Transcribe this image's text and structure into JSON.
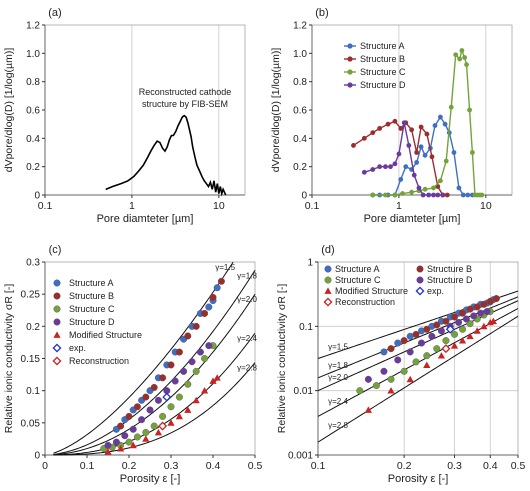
{
  "chart_data": [
    {
      "panel": "(a)",
      "type": "line",
      "xscale": "log",
      "xlim": [
        0.1,
        20
      ],
      "ylim": [
        0,
        1.2
      ],
      "xticks": [
        0.1,
        1,
        10
      ],
      "xtick_labels": [
        "0.1",
        "1",
        "10"
      ],
      "yticks": [
        0,
        0.2,
        0.4,
        0.6,
        0.8,
        1.0,
        1.2
      ],
      "ytick_labels": [
        "0",
        "0.2",
        "0.4",
        "0.6",
        "0.8",
        "1.0",
        "1.2"
      ],
      "xlabel": "Pore diamteter [µm]",
      "ylabel": "dVpore/dlog(D) [1/log(µm)]",
      "grid": "vertical",
      "annotation": [
        "Reconstructed cathode",
        "structure by FIB-SEM"
      ],
      "series": [
        {
          "color": "#000000",
          "markers": false,
          "x": [
            0.5,
            0.6,
            0.75,
            0.9,
            1.05,
            1.2,
            1.35,
            1.5,
            1.65,
            1.8,
            1.95,
            2.1,
            2.25,
            2.4,
            2.55,
            2.7,
            2.85,
            3.0,
            3.2,
            3.4,
            3.6,
            3.8,
            4.0,
            4.2,
            4.4,
            4.6,
            4.8,
            5.0,
            5.3,
            5.6,
            6.0,
            6.4,
            6.8,
            7.2,
            7.6,
            8.0,
            8.4,
            8.8,
            9.2,
            9.6,
            10.0,
            10.4,
            10.8,
            11.2,
            11.6,
            12.0
          ],
          "y": [
            0.04,
            0.06,
            0.08,
            0.1,
            0.13,
            0.17,
            0.21,
            0.26,
            0.31,
            0.35,
            0.38,
            0.37,
            0.33,
            0.31,
            0.34,
            0.39,
            0.42,
            0.42,
            0.45,
            0.49,
            0.52,
            0.55,
            0.56,
            0.55,
            0.51,
            0.46,
            0.41,
            0.34,
            0.27,
            0.21,
            0.17,
            0.13,
            0.1,
            0.08,
            0.06,
            0.09,
            0.04,
            0.1,
            0.02,
            0.08,
            0.01,
            0.06,
            0.01,
            0.04,
            0.02,
            0.0
          ]
        }
      ]
    },
    {
      "panel": "(b)",
      "type": "line",
      "xscale": "log",
      "xlim": [
        0.1,
        20
      ],
      "ylim": [
        0,
        1.2
      ],
      "xticks": [
        0.1,
        1,
        10
      ],
      "xtick_labels": [
        "0.1",
        "1",
        "10"
      ],
      "yticks": [
        0,
        0.2,
        0.4,
        0.6,
        0.8,
        1.0,
        1.2
      ],
      "ytick_labels": [
        "0",
        "0.2",
        "0.4",
        "0.6",
        "0.8",
        "1.0",
        "1.2"
      ],
      "xlabel": "Pore diamteter [µm]",
      "ylabel": "dVpore/dlog(D) [1/log(µm)]",
      "grid": "vertical",
      "legend": "top-left",
      "series": [
        {
          "name": "Structure A",
          "color": "#3f6fc3",
          "x": [
            0.5,
            0.6,
            0.75,
            0.9,
            1.05,
            1.2,
            1.4,
            1.6,
            1.8,
            2.0,
            2.3,
            2.6,
            3.0,
            3.4,
            3.8,
            4.3,
            4.9,
            5.5,
            6.2,
            7.0
          ],
          "y": [
            0.0,
            0.0,
            0.0,
            0.0,
            0.11,
            0.2,
            0.18,
            0.23,
            0.34,
            0.28,
            0.33,
            0.49,
            0.55,
            0.5,
            0.44,
            0.3,
            0.05,
            0.0,
            0.0,
            0.0
          ]
        },
        {
          "name": "Structure B",
          "color": "#9b2d2d",
          "x": [
            0.3,
            0.4,
            0.5,
            0.6,
            0.75,
            0.9,
            1.05,
            1.2,
            1.4,
            1.6,
            1.8,
            2.1,
            2.4,
            2.8,
            3.2,
            3.6
          ],
          "y": [
            0.35,
            0.4,
            0.44,
            0.47,
            0.5,
            0.52,
            0.47,
            0.51,
            0.46,
            0.3,
            0.48,
            0.43,
            0.27,
            0.06,
            0.0,
            0.0
          ]
        },
        {
          "name": "Structure C",
          "color": "#75a23a",
          "x": [
            0.5,
            0.7,
            0.9,
            1.1,
            1.4,
            1.7,
            2.0,
            2.5,
            3.0,
            3.5,
            4.0,
            4.5,
            5.0,
            5.3,
            5.7,
            6.0,
            6.5,
            7.0,
            7.5,
            8.0,
            8.5,
            9.0
          ],
          "y": [
            0.0,
            0.0,
            0.0,
            0.01,
            0.02,
            0.03,
            0.04,
            0.05,
            0.1,
            0.24,
            0.62,
            0.99,
            0.96,
            1.02,
            0.97,
            0.92,
            0.6,
            0.3,
            0.0,
            0.0,
            0.0,
            0.0
          ]
        },
        {
          "name": "Structure D",
          "color": "#6a3a9e",
          "x": [
            0.4,
            0.5,
            0.6,
            0.7,
            0.8,
            0.9,
            1.0,
            1.15,
            1.3,
            1.5,
            1.7,
            1.9,
            2.2,
            2.5,
            2.8,
            3.2
          ],
          "y": [
            0.16,
            0.18,
            0.2,
            0.2,
            0.2,
            0.22,
            0.29,
            0.51,
            0.35,
            0.14,
            0.05,
            0.0,
            0.0,
            0.0,
            0.0,
            0.0
          ]
        }
      ]
    },
    {
      "panel": "(c)",
      "type": "scatter",
      "xlim": [
        0,
        0.5
      ],
      "ylim": [
        0,
        0.3
      ],
      "xticks": [
        0,
        0.1,
        0.2,
        0.3,
        0.4,
        0.5
      ],
      "xtick_labels": [
        "0",
        "0.1",
        "0.2",
        "0.3",
        "0.4",
        "0.5"
      ],
      "yticks": [
        0,
        0.05,
        0.1,
        0.15,
        0.2,
        0.25,
        0.3
      ],
      "ytick_labels": [
        "0",
        "0.05",
        "0.1",
        "0.15",
        "0.2",
        "0.25",
        "0.3"
      ],
      "xlabel": "Porosity ε [-]",
      "ylabel": "Relative ionic conductivity σR [-]",
      "legend": "top-left",
      "curves": [
        {
          "label": "γ=1.5",
          "gamma": 1.5
        },
        {
          "label": "γ=1.8",
          "gamma": 1.8
        },
        {
          "label": "γ=2.0",
          "gamma": 2.0
        },
        {
          "label": "γ=2.4",
          "gamma": 2.4
        },
        {
          "label": "γ=2.8",
          "gamma": 2.8
        }
      ],
      "series": [
        {
          "name": "Structure A",
          "color": "#3f6fc3",
          "marker": "circle",
          "x": [
            0.17,
            0.19,
            0.21,
            0.23,
            0.25,
            0.27,
            0.29,
            0.31,
            0.33,
            0.35,
            0.37,
            0.39,
            0.4,
            0.41
          ],
          "y": [
            0.04,
            0.055,
            0.07,
            0.085,
            0.1,
            0.12,
            0.14,
            0.16,
            0.18,
            0.2,
            0.22,
            0.23,
            0.24,
            0.26
          ]
        },
        {
          "name": "Structure B",
          "color": "#9b2d2d",
          "marker": "circle",
          "x": [
            0.18,
            0.2,
            0.22,
            0.24,
            0.26,
            0.28,
            0.3,
            0.32,
            0.34,
            0.36,
            0.38,
            0.4,
            0.42
          ],
          "y": [
            0.045,
            0.06,
            0.075,
            0.09,
            0.105,
            0.12,
            0.14,
            0.16,
            0.185,
            0.2,
            0.22,
            0.245,
            0.27
          ]
        },
        {
          "name": "Structure C",
          "color": "#75a23a",
          "marker": "circle",
          "x": [
            0.14,
            0.16,
            0.18,
            0.2,
            0.22,
            0.24,
            0.26,
            0.28,
            0.3,
            0.32,
            0.34,
            0.36,
            0.38,
            0.4
          ],
          "y": [
            0.01,
            0.012,
            0.015,
            0.02,
            0.028,
            0.035,
            0.045,
            0.06,
            0.075,
            0.09,
            0.11,
            0.13,
            0.15,
            0.17
          ]
        },
        {
          "name": "Structure D",
          "color": "#6a3a9e",
          "marker": "circle",
          "x": [
            0.15,
            0.17,
            0.19,
            0.21,
            0.23,
            0.25,
            0.27,
            0.29,
            0.31,
            0.33,
            0.35,
            0.37,
            0.39
          ],
          "y": [
            0.015,
            0.02,
            0.03,
            0.04,
            0.055,
            0.07,
            0.085,
            0.1,
            0.115,
            0.13,
            0.145,
            0.16,
            0.17
          ]
        },
        {
          "name": "Modified Structure",
          "color": "#cc2222",
          "marker": "triangle",
          "x": [
            0.15,
            0.18,
            0.21,
            0.24,
            0.27,
            0.3,
            0.32,
            0.34,
            0.36,
            0.38,
            0.4,
            0.41
          ],
          "y": [
            0.005,
            0.01,
            0.015,
            0.025,
            0.035,
            0.05,
            0.06,
            0.07,
            0.085,
            0.1,
            0.115,
            0.12
          ]
        },
        {
          "name": "exp.",
          "color": "#2233cc",
          "marker": "diamond-open",
          "x": [
            0.29
          ],
          "y": [
            0.09
          ]
        },
        {
          "name": "Reconstruction",
          "color": "#cc2222",
          "marker": "diamond-open",
          "x": [
            0.28
          ],
          "y": [
            0.045
          ]
        }
      ]
    },
    {
      "panel": "(d)",
      "type": "scatter",
      "xscale": "log",
      "yscale": "log",
      "xlim": [
        0.1,
        0.5
      ],
      "ylim": [
        0.001,
        1
      ],
      "xticks": [
        0.1,
        0.2,
        0.3,
        0.4,
        0.5
      ],
      "xtick_labels": [
        "0.1",
        "0.2",
        "0.3",
        "0.4",
        "0.5"
      ],
      "yticks": [
        0.001,
        0.01,
        0.1,
        1
      ],
      "ytick_labels": [
        "0.001",
        "0.01",
        "0.1",
        "1"
      ],
      "xlabel": "Porosity ε [-]",
      "ylabel": "Relative ionic conductivity σR [-]",
      "legend": "top",
      "curves": [
        {
          "label": "γ=1.5",
          "gamma": 1.5
        },
        {
          "label": "γ=1.8",
          "gamma": 1.8
        },
        {
          "label": "γ=2.0",
          "gamma": 2.0
        },
        {
          "label": "γ=2.4",
          "gamma": 2.4
        },
        {
          "label": "γ=2.8",
          "gamma": 2.8
        }
      ],
      "series": [
        {
          "name": "Structure A",
          "color": "#3f6fc3",
          "marker": "circle",
          "x": [
            0.17,
            0.19,
            0.21,
            0.23,
            0.25,
            0.27,
            0.29,
            0.31,
            0.33,
            0.35,
            0.37,
            0.39,
            0.4,
            0.41
          ],
          "y": [
            0.04,
            0.055,
            0.07,
            0.085,
            0.1,
            0.12,
            0.14,
            0.16,
            0.18,
            0.2,
            0.22,
            0.23,
            0.24,
            0.26
          ]
        },
        {
          "name": "Structure B",
          "color": "#9b2d2d",
          "marker": "circle",
          "x": [
            0.18,
            0.2,
            0.22,
            0.24,
            0.26,
            0.28,
            0.3,
            0.32,
            0.34,
            0.36,
            0.38,
            0.4,
            0.42
          ],
          "y": [
            0.045,
            0.06,
            0.075,
            0.09,
            0.105,
            0.12,
            0.14,
            0.16,
            0.185,
            0.2,
            0.22,
            0.245,
            0.27
          ]
        },
        {
          "name": "Structure C",
          "color": "#75a23a",
          "marker": "circle",
          "x": [
            0.14,
            0.16,
            0.18,
            0.2,
            0.22,
            0.24,
            0.26,
            0.28,
            0.3,
            0.32,
            0.34,
            0.36,
            0.38,
            0.4
          ],
          "y": [
            0.01,
            0.012,
            0.015,
            0.02,
            0.028,
            0.035,
            0.045,
            0.06,
            0.075,
            0.09,
            0.11,
            0.13,
            0.15,
            0.17
          ]
        },
        {
          "name": "Structure D",
          "color": "#6a3a9e",
          "marker": "circle",
          "x": [
            0.15,
            0.17,
            0.19,
            0.21,
            0.23,
            0.25,
            0.27,
            0.29,
            0.31,
            0.33,
            0.35,
            0.37,
            0.39
          ],
          "y": [
            0.015,
            0.02,
            0.03,
            0.04,
            0.055,
            0.07,
            0.085,
            0.1,
            0.115,
            0.13,
            0.145,
            0.16,
            0.17
          ]
        },
        {
          "name": "Modified Structure",
          "color": "#cc2222",
          "marker": "triangle",
          "x": [
            0.15,
            0.18,
            0.21,
            0.24,
            0.27,
            0.3,
            0.32,
            0.34,
            0.36,
            0.38,
            0.4,
            0.41
          ],
          "y": [
            0.005,
            0.01,
            0.015,
            0.025,
            0.035,
            0.05,
            0.06,
            0.07,
            0.085,
            0.1,
            0.115,
            0.12
          ]
        },
        {
          "name": "exp.",
          "color": "#2233cc",
          "marker": "diamond-open",
          "x": [
            0.29
          ],
          "y": [
            0.09
          ]
        },
        {
          "name": "Reconstruction",
          "color": "#cc2222",
          "marker": "diamond-open",
          "x": [
            0.28
          ],
          "y": [
            0.045
          ]
        }
      ]
    }
  ]
}
